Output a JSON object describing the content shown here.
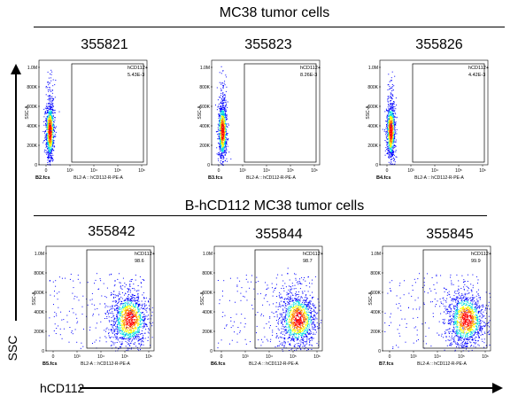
{
  "top_section": {
    "title": "MC38 tumor cells"
  },
  "bottom_section": {
    "title": "B-hCD112 MC38 tumor cells"
  },
  "y_axis_label": "SSC",
  "x_axis_label": "hCD112",
  "chart_data": [
    {
      "type": "scatter",
      "sample": "355821",
      "file": "B2.fcs",
      "gate": "hCD112+",
      "gate_value": "5.43E-3",
      "xlabel": "BL2-A :: hCD112-R-PE-A",
      "ylabel": "SSC-A",
      "population": "negative"
    },
    {
      "type": "scatter",
      "sample": "355823",
      "file": "B3.fcs",
      "gate": "hCD112+",
      "gate_value": "8.26E-3",
      "xlabel": "BL2-A :: hCD112-R-PE-A",
      "ylabel": "SSC-A",
      "population": "negative"
    },
    {
      "type": "scatter",
      "sample": "355826",
      "file": "B4.fcs",
      "gate": "hCD112+",
      "gate_value": "4.42E-3",
      "xlabel": "BL2-A :: hCD112-R-PE-A",
      "ylabel": "SSC-A",
      "population": "negative"
    },
    {
      "type": "scatter",
      "sample": "355842",
      "file": "B5.fcs",
      "gate": "hCD112+",
      "gate_value": "98.6",
      "xlabel": "BL2-A :: hCD112-R-PE-A",
      "ylabel": "SSC-A",
      "population": "positive"
    },
    {
      "type": "scatter",
      "sample": "355844",
      "file": "B6.fcs",
      "gate": "hCD112+",
      "gate_value": "98.7",
      "xlabel": "BL2-A :: hCD112-R-PE-A",
      "ylabel": "SSC-A",
      "population": "positive"
    },
    {
      "type": "scatter",
      "sample": "355845",
      "file": "B7.fcs",
      "gate": "hCD112+",
      "gate_value": "99.9",
      "xlabel": "BL2-A :: hCD112-R-PE-A",
      "ylabel": "SSC-A",
      "population": "positive"
    }
  ],
  "y_ticks": [
    "0",
    "200K",
    "400K",
    "600K",
    "800K",
    "1.0M"
  ],
  "x_ticks": [
    "0",
    "10³",
    "10⁴",
    "10⁵",
    "10⁶"
  ],
  "colors": {
    "density_low": "#0000ff",
    "density_mid": "#00e0e0",
    "density_high1": "#ffff00",
    "density_high2": "#ff8000",
    "density_peak": "#ff0000",
    "gate": "#000000"
  }
}
